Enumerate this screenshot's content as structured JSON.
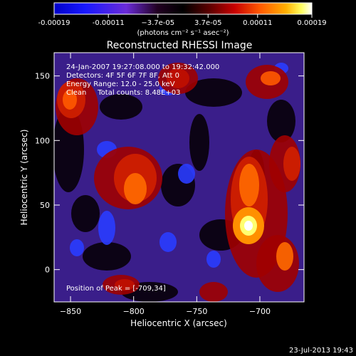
{
  "chart_data": {
    "type": "heatmap",
    "title": "Reconstructed RHESSI Image",
    "xlabel": "Heliocentric X (arcsec)",
    "ylabel": "Heliocentric Y (arcsec)",
    "xlim": [
      -863,
      -665
    ],
    "ylim": [
      -25,
      168
    ],
    "x_ticks": [
      -850,
      -800,
      -750,
      -700
    ],
    "y_ticks": [
      0,
      50,
      100,
      150
    ],
    "grid": false,
    "colorbar": {
      "placement": "top",
      "range": [
        -0.00019,
        0.00019
      ],
      "tick_values": [
        -0.00019,
        -0.00011,
        -3.7e-05,
        3.7e-05,
        0.00011,
        0.00019
      ],
      "tick_labels": [
        "-0.00019",
        "-0.00011",
        "−3.7e-05",
        "3.7e-05",
        "0.00011",
        "0.00019"
      ],
      "unit_label": "(photons cm⁻² s⁻¹ asec⁻²)",
      "colors": [
        "#0000c8",
        "#1818ff",
        "#6a2bd8",
        "#220022",
        "#000000",
        "#5a0000",
        "#c80000",
        "#ff5a00",
        "#ffb000",
        "#ffff60",
        "#ffffff"
      ]
    },
    "annotations": {
      "time_range": "24-Jan-2007 19:27:08.000 to 19:32:42.000",
      "detectors": "Detectors: 4F 5F 6F 7F 8F, Att 0",
      "energy_range": "Energy Range: 12.0 - 25.0 keV",
      "clean_info": "Clean     Total counts: 8.48E+03",
      "peak_position": "Position of Peak = [-709,34]"
    },
    "peak": {
      "x": -709,
      "y": 34
    }
  },
  "footer": {
    "timestamp": "23-Jul-2013 19:43"
  }
}
